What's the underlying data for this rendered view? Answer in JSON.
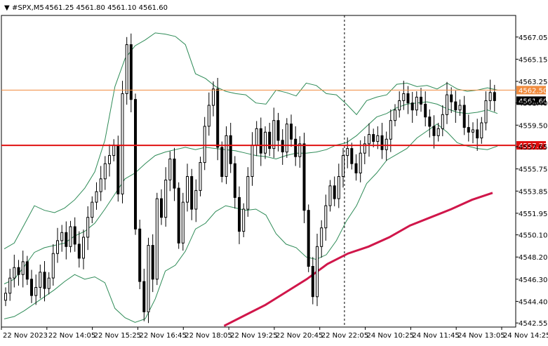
{
  "header": {
    "symbol": "#SPX,M5",
    "ohlc": "4561.25 4561.80 4561.10 4561.60"
  },
  "colors": {
    "background": "#ffffff",
    "axis": "#000000",
    "candle": "#000000",
    "bollinger": "#2e8b57",
    "moving_average": "#d0164a",
    "support_line": "#e01010",
    "resistance_line": "#f08a3c",
    "price_label_bg": "#000000",
    "price_label_text": "#ffffff"
  },
  "chart_data": {
    "type": "candlestick",
    "timeframe": "M5",
    "ylim": [
      4542.2,
      4568.9
    ],
    "y_ticks": [
      "4542.55",
      "4544.40",
      "4546.30",
      "4548.20",
      "4550.10",
      "4551.95",
      "4553.85",
      "4555.75",
      "4557.65",
      "4559.50",
      "4561.40",
      "4563.25",
      "4565.15",
      "4567.05"
    ],
    "x_tick_labels": [
      "22 Nov 2023",
      "22 Nov 14:05",
      "22 Nov 15:25",
      "22 Nov 16:45",
      "22 Nov 18:05",
      "22 Nov 19:25",
      "22 Nov 20:45",
      "22 Nov 22:05",
      "24 Nov 10:25",
      "24 Nov 11:45",
      "24 Nov 13:05",
      "24 Nov 14:25"
    ],
    "candles_close": [
      4545.1,
      4546.4,
      4547.3,
      4546.7,
      4547.8,
      4546.3,
      4544.9,
      4545.6,
      4546.9,
      4545.5,
      4546.4,
      4548.5,
      4549.6,
      4550.3,
      4549.1,
      4550.8,
      4549.3,
      4548.1,
      4549.9,
      4551.6,
      4552.9,
      4553.8,
      4554.9,
      4556.2,
      4556.9,
      4557.8,
      4553.6,
      4562.2,
      4566.4,
      4561.7,
      4550.6,
      4546.1,
      4543.5,
      4549.2,
      4546.3,
      4553.2,
      4551.6,
      4554.8,
      4556.6,
      4554.1,
      4549.4,
      4552.9,
      4555.1,
      4552.3,
      4553.9,
      4556.3,
      4559.4,
      4561.2,
      4562.6,
      4557.6,
      4555.1,
      4558.6,
      4556.2,
      4553.3,
      4550.4,
      4552.3,
      4555.1,
      4557.8,
      4559.2,
      4557.1,
      4558.9,
      4557.5,
      4559.9,
      4558.2,
      4557.2,
      4559.6,
      4558.3,
      4556.8,
      4557.9,
      4552.2,
      4547.4,
      4544.8,
      4549.1,
      4550.7,
      4552.6,
      4554.3,
      4553.2,
      4555.1,
      4556.9,
      4557.5,
      4556.2,
      4555.4,
      4557.1,
      4557.9,
      4558.7,
      4558.1,
      4558.6,
      4557.4,
      4558.3,
      4559.9,
      4560.8,
      4561.6,
      4562.2,
      4561.4,
      4560.8,
      4561.9,
      4561.3,
      4560.2,
      4559.4,
      4558.6,
      4559.2,
      4560.4,
      4562.1,
      4561.5,
      4560.8,
      4561.2,
      4559.3,
      4558.9,
      4559.1,
      4558.4,
      4559.7,
      4561.6,
      4562.3,
      4561.6
    ],
    "bollinger": {
      "upper": [
        4548.9,
        4549.4,
        4551.0,
        4552.6,
        4552.2,
        4552.0,
        4552.4,
        4553.1,
        4554.1,
        4555.5,
        4558.2,
        4562.8,
        4565.2,
        4566.3,
        4566.8,
        4567.4,
        4567.3,
        4567.1,
        4566.4,
        4563.9,
        4563.5,
        4562.8,
        4562.4,
        4562.2,
        4562.1,
        4561.4,
        4561.3,
        4562.5,
        4562.3,
        4562.0,
        4563.1,
        4562.9,
        4562.2,
        4562.1,
        4561.3,
        4560.4,
        4561.6,
        4561.9,
        4562.1,
        4563.0,
        4563.1,
        4562.8,
        4562.9,
        4562.6,
        4563.1,
        4562.6,
        4562.4,
        4562.5,
        4562.7,
        4562.5
      ],
      "middle": [
        4545.9,
        4546.3,
        4547.4,
        4548.6,
        4549.0,
        4549.2,
        4549.4,
        4550.0,
        4550.4,
        4551.1,
        4552.3,
        4553.6,
        4554.9,
        4555.4,
        4556.2,
        4556.9,
        4557.2,
        4557.4,
        4557.6,
        4557.4,
        4557.6,
        4557.5,
        4557.4,
        4557.3,
        4557.1,
        4556.9,
        4556.8,
        4556.6,
        4556.9,
        4557.1,
        4557.1,
        4557.2,
        4557.4,
        4557.8,
        4558.0,
        4558.6,
        4559.4,
        4560.2,
        4560.5,
        4561.0,
        4561.3,
        4561.4,
        4561.5,
        4561.3,
        4560.9,
        4560.6,
        4560.5,
        4560.6,
        4560.8,
        4560.5
      ],
      "lower": [
        4542.9,
        4543.1,
        4543.6,
        4544.2,
        4544.8,
        4545.4,
        4546.1,
        4546.7,
        4546.3,
        4546.5,
        4546.0,
        4543.8,
        4543.0,
        4542.6,
        4542.9,
        4544.6,
        4547.0,
        4547.5,
        4548.7,
        4550.6,
        4551.1,
        4552.1,
        4552.6,
        4552.4,
        4552.2,
        4552.3,
        4551.8,
        4550.2,
        4549.3,
        4549.0,
        4548.2,
        4548.0,
        4548.4,
        4549.6,
        4551.3,
        4552.6,
        4554.5,
        4555.4,
        4556.5,
        4557.0,
        4557.5,
        4558.4,
        4559.0,
        4559.6,
        4558.9,
        4558.0,
        4557.7,
        4557.5,
        4557.4,
        4557.7
      ]
    },
    "moving_average": {
      "x_range": [
        0.433,
        0.955
      ],
      "values": [
        4542.3,
        4543.2,
        4544.1,
        4545.2,
        4546.3,
        4547.6,
        4548.5,
        4549.1,
        4549.9,
        4550.9,
        4551.6,
        4552.3,
        4553.1,
        4553.7
      ]
    },
    "horizontal_levels": [
      {
        "price": "4562.50",
        "value": 4562.5,
        "style": "resistance"
      },
      {
        "price": "4557.77",
        "value": 4557.77,
        "style": "support"
      }
    ],
    "current_price": {
      "price": "4561.60",
      "value": 4561.6
    },
    "vertical_marker_time_index": 0.667
  }
}
